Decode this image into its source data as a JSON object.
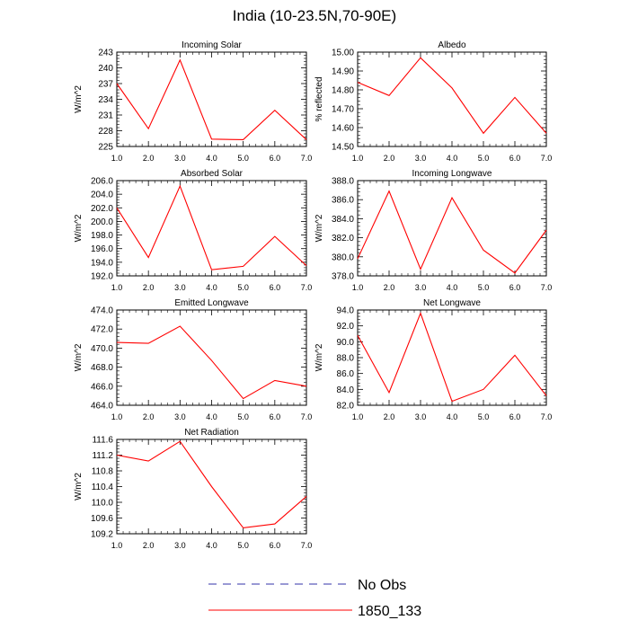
{
  "title": "India (10-23.5N,70-90E)",
  "legend": {
    "items": [
      {
        "label": "No Obs",
        "color": "#3333aa",
        "style": "dashed"
      },
      {
        "label": "1850_133",
        "color": "#ff0000",
        "style": "solid"
      }
    ]
  },
  "chart_data": [
    {
      "type": "line",
      "title": "Incoming Solar",
      "xlabel": "",
      "ylabel": "W/m^2",
      "x": [
        1,
        2,
        3,
        4,
        5,
        6,
        7
      ],
      "xticks": [
        "1.0",
        "2.0",
        "3.0",
        "4.0",
        "5.0",
        "6.0",
        "7.0"
      ],
      "ylim": [
        225,
        243
      ],
      "yticks": [
        {
          "v": 225,
          "t": "225"
        },
        {
          "v": 228,
          "t": "228"
        },
        {
          "v": 231,
          "t": "231"
        },
        {
          "v": 234,
          "t": "234"
        },
        {
          "v": 237,
          "t": "237"
        },
        {
          "v": 240,
          "t": "240"
        },
        {
          "v": 243,
          "t": "243"
        }
      ],
      "series": [
        {
          "name": "1850_133",
          "color": "#ff0000",
          "values": [
            237.0,
            228.4,
            241.5,
            226.4,
            226.3,
            231.9,
            226.3
          ]
        }
      ]
    },
    {
      "type": "line",
      "title": "Albedo",
      "xlabel": "",
      "ylabel": "% reflected",
      "x": [
        1,
        2,
        3,
        4,
        5,
        6,
        7
      ],
      "xticks": [
        "1.0",
        "2.0",
        "3.0",
        "4.0",
        "5.0",
        "6.0",
        "7.0"
      ],
      "ylim": [
        14.5,
        15.0
      ],
      "yticks": [
        {
          "v": 14.5,
          "t": "14.50"
        },
        {
          "v": 14.6,
          "t": "14.60"
        },
        {
          "v": 14.7,
          "t": "14.70"
        },
        {
          "v": 14.8,
          "t": "14.80"
        },
        {
          "v": 14.9,
          "t": "14.90"
        },
        {
          "v": 15.0,
          "t": "15.00"
        }
      ],
      "series": [
        {
          "name": "1850_133",
          "color": "#ff0000",
          "values": [
            14.84,
            14.77,
            14.97,
            14.81,
            14.57,
            14.76,
            14.57
          ]
        }
      ]
    },
    {
      "type": "line",
      "title": "Absorbed Solar",
      "xlabel": "",
      "ylabel": "W/m^2",
      "x": [
        1,
        2,
        3,
        4,
        5,
        6,
        7
      ],
      "xticks": [
        "1.0",
        "2.0",
        "3.0",
        "4.0",
        "5.0",
        "6.0",
        "7.0"
      ],
      "ylim": [
        192.0,
        206.0
      ],
      "yticks": [
        {
          "v": 192,
          "t": "192.0"
        },
        {
          "v": 194,
          "t": "194.0"
        },
        {
          "v": 196,
          "t": "196.0"
        },
        {
          "v": 198,
          "t": "198.0"
        },
        {
          "v": 200,
          "t": "200.0"
        },
        {
          "v": 202,
          "t": "202.0"
        },
        {
          "v": 204,
          "t": "204.0"
        },
        {
          "v": 206,
          "t": "206.0"
        }
      ],
      "series": [
        {
          "name": "1850_133",
          "color": "#ff0000",
          "values": [
            202.0,
            194.7,
            205.2,
            192.9,
            193.4,
            197.8,
            193.5
          ]
        }
      ]
    },
    {
      "type": "line",
      "title": "Incoming Longwave",
      "xlabel": "",
      "ylabel": "W/m^2",
      "x": [
        1,
        2,
        3,
        4,
        5,
        6,
        7
      ],
      "xticks": [
        "1.0",
        "2.0",
        "3.0",
        "4.0",
        "5.0",
        "6.0",
        "7.0"
      ],
      "ylim": [
        378.0,
        388.0
      ],
      "yticks": [
        {
          "v": 378,
          "t": "378.0"
        },
        {
          "v": 380,
          "t": "380.0"
        },
        {
          "v": 382,
          "t": "382.0"
        },
        {
          "v": 384,
          "t": "384.0"
        },
        {
          "v": 386,
          "t": "386.0"
        },
        {
          "v": 388,
          "t": "388.0"
        }
      ],
      "series": [
        {
          "name": "1850_133",
          "color": "#ff0000",
          "values": [
            379.8,
            386.9,
            378.7,
            386.2,
            380.7,
            378.3,
            382.8
          ]
        }
      ]
    },
    {
      "type": "line",
      "title": "Emitted Longwave",
      "xlabel": "",
      "ylabel": "W/m^2",
      "x": [
        1,
        2,
        3,
        4,
        5,
        6,
        7
      ],
      "xticks": [
        "1.0",
        "2.0",
        "3.0",
        "4.0",
        "5.0",
        "6.0",
        "7.0"
      ],
      "ylim": [
        464.0,
        474.0
      ],
      "yticks": [
        {
          "v": 464,
          "t": "464.0"
        },
        {
          "v": 466,
          "t": "466.0"
        },
        {
          "v": 468,
          "t": "468.0"
        },
        {
          "v": 470,
          "t": "470.0"
        },
        {
          "v": 472,
          "t": "472.0"
        },
        {
          "v": 474,
          "t": "474.0"
        }
      ],
      "series": [
        {
          "name": "1850_133",
          "color": "#ff0000",
          "values": [
            470.6,
            470.5,
            472.3,
            468.7,
            464.7,
            466.6,
            466.0
          ]
        }
      ]
    },
    {
      "type": "line",
      "title": "Net Longwave",
      "xlabel": "",
      "ylabel": "W/m^2",
      "x": [
        1,
        2,
        3,
        4,
        5,
        6,
        7
      ],
      "xticks": [
        "1.0",
        "2.0",
        "3.0",
        "4.0",
        "5.0",
        "6.0",
        "7.0"
      ],
      "ylim": [
        82.0,
        94.0
      ],
      "yticks": [
        {
          "v": 82,
          "t": "82.0"
        },
        {
          "v": 84,
          "t": "84.0"
        },
        {
          "v": 86,
          "t": "86.0"
        },
        {
          "v": 88,
          "t": "88.0"
        },
        {
          "v": 90,
          "t": "90.0"
        },
        {
          "v": 92,
          "t": "92.0"
        },
        {
          "v": 94,
          "t": "94.0"
        }
      ],
      "series": [
        {
          "name": "1850_133",
          "color": "#ff0000",
          "values": [
            90.8,
            83.6,
            93.6,
            82.5,
            84.0,
            88.3,
            83.2
          ]
        }
      ]
    },
    {
      "type": "line",
      "title": "Net Radiation",
      "xlabel": "",
      "ylabel": "W/m^2",
      "x": [
        1,
        2,
        3,
        4,
        5,
        6,
        7
      ],
      "xticks": [
        "1.0",
        "2.0",
        "3.0",
        "4.0",
        "5.0",
        "6.0",
        "7.0"
      ],
      "ylim": [
        109.2,
        111.6
      ],
      "yticks": [
        {
          "v": 109.2,
          "t": "109.2"
        },
        {
          "v": 109.6,
          "t": "109.6"
        },
        {
          "v": 110.0,
          "t": "110.0"
        },
        {
          "v": 110.4,
          "t": "110.4"
        },
        {
          "v": 110.8,
          "t": "110.8"
        },
        {
          "v": 111.2,
          "t": "111.2"
        },
        {
          "v": 111.6,
          "t": "111.6"
        }
      ],
      "series": [
        {
          "name": "1850_133",
          "color": "#ff0000",
          "values": [
            111.2,
            111.05,
            111.55,
            110.4,
            109.35,
            109.45,
            110.15
          ]
        }
      ]
    }
  ]
}
